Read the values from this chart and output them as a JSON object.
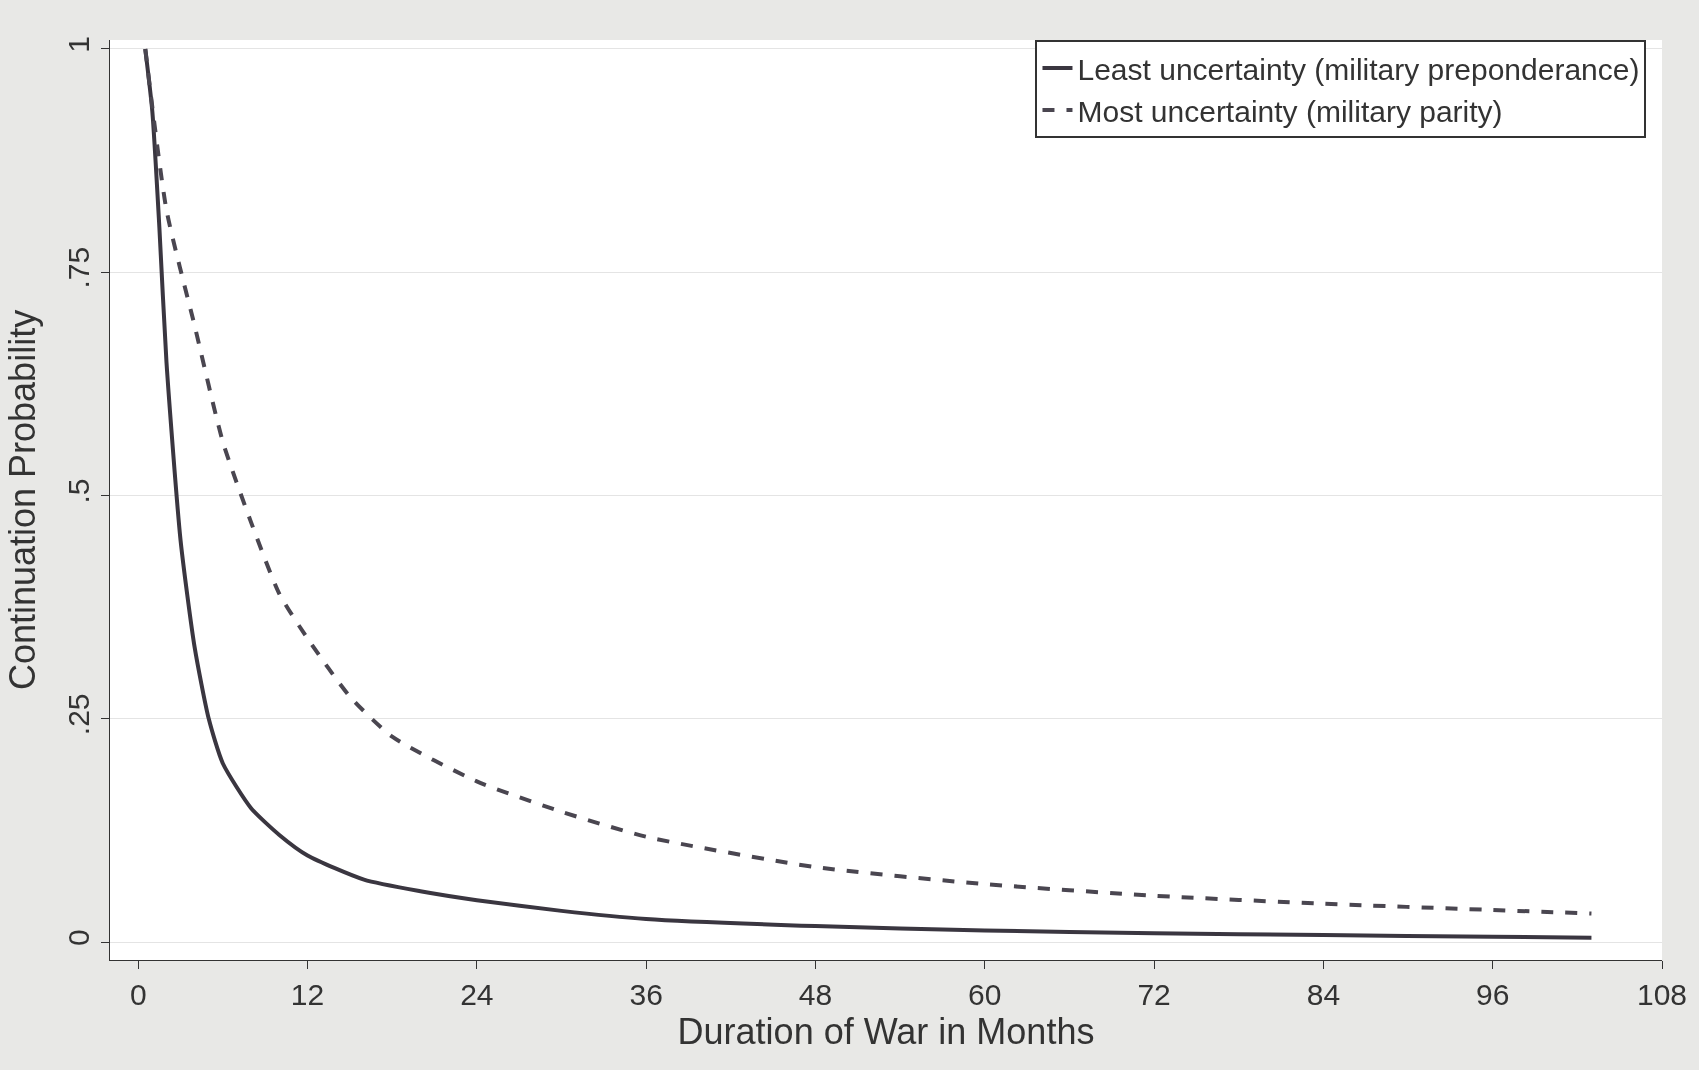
{
  "chart_data": {
    "type": "line",
    "xlabel": "Duration of War in Months",
    "ylabel": "Continuation Probability",
    "xlim": [
      -2,
      108
    ],
    "xticks": [
      0,
      12,
      24,
      36,
      48,
      60,
      72,
      84,
      96,
      108
    ],
    "ylim": [
      -0.02,
      1.01
    ],
    "yticks": [
      0,
      {
        "value": 0.25,
        "label": ".25"
      },
      {
        "value": 0.5,
        "label": ".5"
      },
      {
        "value": 0.75,
        "label": ".75"
      },
      1
    ],
    "grid": "y",
    "legend": "top right",
    "series": [
      {
        "name": "Least uncertainty (military preponderance)",
        "color": "#3a3640",
        "line_style": "solid",
        "x": [
          0.5,
          1,
          1.5,
          2,
          3,
          4,
          5,
          6,
          8,
          10,
          12,
          16,
          20,
          24,
          30,
          36,
          48,
          60,
          72,
          84,
          96,
          103
        ],
        "values": [
          1.0,
          0.93,
          0.8,
          0.65,
          0.45,
          0.33,
          0.25,
          0.2,
          0.15,
          0.12,
          0.097,
          0.07,
          0.057,
          0.047,
          0.035,
          0.026,
          0.018,
          0.013,
          0.01,
          0.008,
          0.006,
          0.005
        ]
      },
      {
        "name": "Most uncertainty (military parity)",
        "color": "#4a4650",
        "line_style": "dashed",
        "x": [
          0.5,
          2,
          4,
          6,
          8,
          10,
          12,
          15,
          18,
          24,
          30,
          36,
          48,
          60,
          72,
          84,
          96,
          103
        ],
        "values": [
          1.0,
          0.82,
          0.69,
          0.56,
          0.47,
          0.39,
          0.34,
          0.275,
          0.23,
          0.18,
          0.146,
          0.118,
          0.084,
          0.065,
          0.052,
          0.043,
          0.036,
          0.032
        ]
      }
    ]
  }
}
